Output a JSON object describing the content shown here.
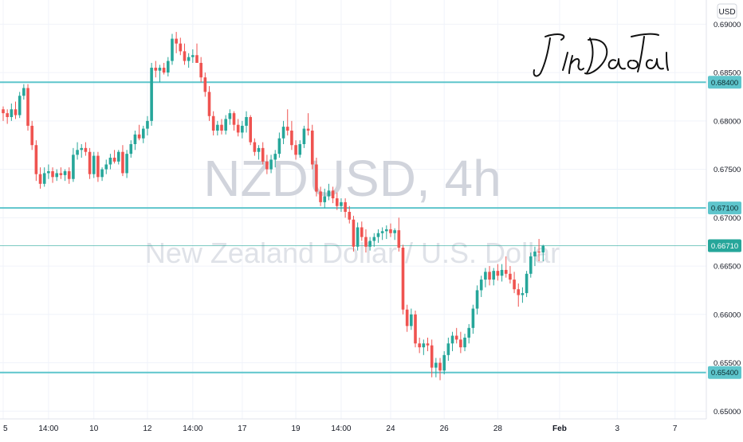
{
  "currency_badge": "USD",
  "signature": "JinDaoTai",
  "colors": {
    "up": "#26a69a",
    "down": "#ef5350",
    "level_line": "#5ec5cc",
    "price_line": "#26a69a",
    "grid": "#f0f3fa",
    "axis_text": "#131722",
    "watermark": "#d1d4dc"
  },
  "chart_data": {
    "type": "candlestick",
    "watermark": {
      "symbol": "NZDUSD, 4h",
      "description": "New Zealand Dollar / U.S. Dollar"
    },
    "y_axis": {
      "ticks": [
        {
          "value": 0.69,
          "label": "0.69000"
        },
        {
          "value": 0.685,
          "label": "0.68500"
        },
        {
          "value": 0.68,
          "label": "0.68000"
        },
        {
          "value": 0.675,
          "label": "0.67500"
        },
        {
          "value": 0.67,
          "label": "0.67000"
        },
        {
          "value": 0.665,
          "label": "0.66500"
        },
        {
          "value": 0.66,
          "label": "0.66000"
        },
        {
          "value": 0.655,
          "label": "0.65500"
        },
        {
          "value": 0.65,
          "label": "0.65000"
        }
      ],
      "range": [
        0.6492,
        0.6925
      ]
    },
    "x_axis": {
      "tick_labels": [
        "5",
        "14:00",
        "10",
        "12",
        "14:00",
        "17",
        "19",
        "14:00",
        "24",
        "26",
        "28",
        "Feb",
        "3",
        "7"
      ],
      "tick_index": [
        0,
        11,
        22,
        35,
        46,
        58,
        71,
        82,
        94,
        107,
        120,
        135,
        149,
        163
      ],
      "bold": [
        "Feb"
      ]
    },
    "horizontal_levels": [
      {
        "value": 0.684,
        "label": "0.68400"
      },
      {
        "value": 0.671,
        "label": "0.67100"
      },
      {
        "value": 0.654,
        "label": "0.65400"
      }
    ],
    "last_price": {
      "value": 0.6671,
      "label": "0.66710"
    },
    "candles": [
      [
        0.6812,
        0.6815,
        0.68,
        0.6808
      ],
      [
        0.6808,
        0.6812,
        0.6797,
        0.6804
      ],
      [
        0.6804,
        0.6818,
        0.68,
        0.6812
      ],
      [
        0.6812,
        0.682,
        0.6802,
        0.6806
      ],
      [
        0.6806,
        0.683,
        0.6803,
        0.6826
      ],
      [
        0.6826,
        0.6838,
        0.6822,
        0.6834
      ],
      [
        0.6834,
        0.6838,
        0.679,
        0.6795
      ],
      [
        0.6795,
        0.68,
        0.677,
        0.6775
      ],
      [
        0.6775,
        0.678,
        0.6738,
        0.6745
      ],
      [
        0.6745,
        0.6752,
        0.673,
        0.6735
      ],
      [
        0.6735,
        0.6752,
        0.6732,
        0.6746
      ],
      [
        0.6746,
        0.6755,
        0.674,
        0.6748
      ],
      [
        0.6748,
        0.6752,
        0.6736,
        0.6742
      ],
      [
        0.6742,
        0.675,
        0.6738,
        0.6746
      ],
      [
        0.6746,
        0.6752,
        0.674,
        0.6744
      ],
      [
        0.6744,
        0.675,
        0.6738,
        0.6748
      ],
      [
        0.6748,
        0.6752,
        0.6735,
        0.674
      ],
      [
        0.674,
        0.6772,
        0.6737,
        0.6765
      ],
      [
        0.6765,
        0.6778,
        0.676,
        0.677
      ],
      [
        0.677,
        0.6776,
        0.6762,
        0.6772
      ],
      [
        0.6772,
        0.6778,
        0.6764,
        0.6768
      ],
      [
        0.6768,
        0.6772,
        0.674,
        0.6745
      ],
      [
        0.6745,
        0.6768,
        0.6741,
        0.6764
      ],
      [
        0.6764,
        0.6768,
        0.6737,
        0.6742
      ],
      [
        0.6742,
        0.6752,
        0.6738,
        0.675
      ],
      [
        0.675,
        0.676,
        0.6745,
        0.6755
      ],
      [
        0.6755,
        0.6766,
        0.675,
        0.6762
      ],
      [
        0.6762,
        0.677,
        0.6756,
        0.6758
      ],
      [
        0.6758,
        0.677,
        0.6755,
        0.6768
      ],
      [
        0.6768,
        0.6775,
        0.6743,
        0.6746
      ],
      [
        0.6746,
        0.677,
        0.6741,
        0.6766
      ],
      [
        0.6766,
        0.678,
        0.6762,
        0.6776
      ],
      [
        0.6776,
        0.679,
        0.677,
        0.6786
      ],
      [
        0.6786,
        0.6796,
        0.678,
        0.6782
      ],
      [
        0.6782,
        0.6795,
        0.6777,
        0.6792
      ],
      [
        0.6792,
        0.6805,
        0.6785,
        0.68
      ],
      [
        0.68,
        0.686,
        0.6795,
        0.6855
      ],
      [
        0.6855,
        0.6862,
        0.6845,
        0.6852
      ],
      [
        0.6852,
        0.6858,
        0.684,
        0.6855
      ],
      [
        0.6855,
        0.686,
        0.6848,
        0.685
      ],
      [
        0.685,
        0.6866,
        0.6846,
        0.6862
      ],
      [
        0.6862,
        0.689,
        0.6858,
        0.6885
      ],
      [
        0.6885,
        0.6892,
        0.687,
        0.688
      ],
      [
        0.688,
        0.6886,
        0.6868,
        0.6872
      ],
      [
        0.6872,
        0.688,
        0.6858,
        0.6862
      ],
      [
        0.6862,
        0.687,
        0.6855,
        0.6866
      ],
      [
        0.6866,
        0.6874,
        0.686,
        0.6868
      ],
      [
        0.6868,
        0.688,
        0.6862,
        0.686
      ],
      [
        0.686,
        0.6866,
        0.684,
        0.6845
      ],
      [
        0.6845,
        0.685,
        0.6825,
        0.683
      ],
      [
        0.683,
        0.6836,
        0.68,
        0.6805
      ],
      [
        0.6805,
        0.681,
        0.6785,
        0.679
      ],
      [
        0.679,
        0.68,
        0.6785,
        0.6796
      ],
      [
        0.6796,
        0.6802,
        0.6786,
        0.679
      ],
      [
        0.679,
        0.6806,
        0.6786,
        0.6802
      ],
      [
        0.6802,
        0.6812,
        0.6796,
        0.6808
      ],
      [
        0.6808,
        0.681,
        0.679,
        0.6796
      ],
      [
        0.6796,
        0.6802,
        0.6784,
        0.6788
      ],
      [
        0.6788,
        0.68,
        0.6782,
        0.6795
      ],
      [
        0.6795,
        0.681,
        0.6788,
        0.6804
      ],
      [
        0.6804,
        0.6806,
        0.6775,
        0.6778
      ],
      [
        0.6778,
        0.6782,
        0.6764,
        0.6768
      ],
      [
        0.6768,
        0.6775,
        0.676,
        0.6772
      ],
      [
        0.6772,
        0.6778,
        0.6755,
        0.6758
      ],
      [
        0.6758,
        0.6765,
        0.6745,
        0.675
      ],
      [
        0.675,
        0.6765,
        0.6746,
        0.676
      ],
      [
        0.676,
        0.677,
        0.6752,
        0.6766
      ],
      [
        0.6766,
        0.6788,
        0.6762,
        0.6782
      ],
      [
        0.6782,
        0.68,
        0.6776,
        0.6794
      ],
      [
        0.6794,
        0.6812,
        0.6785,
        0.679
      ],
      [
        0.679,
        0.68,
        0.677,
        0.6775
      ],
      [
        0.6775,
        0.678,
        0.676,
        0.6765
      ],
      [
        0.6765,
        0.678,
        0.6762,
        0.6776
      ],
      [
        0.6776,
        0.6795,
        0.6772,
        0.6792
      ],
      [
        0.6792,
        0.6808,
        0.6785,
        0.679
      ],
      [
        0.679,
        0.6796,
        0.675,
        0.6755
      ],
      [
        0.6755,
        0.6762,
        0.6722,
        0.6727
      ],
      [
        0.6727,
        0.6732,
        0.6712,
        0.6716
      ],
      [
        0.6716,
        0.673,
        0.671,
        0.6722
      ],
      [
        0.6722,
        0.6735,
        0.6718,
        0.6728
      ],
      [
        0.6728,
        0.6732,
        0.6715,
        0.672
      ],
      [
        0.672,
        0.6726,
        0.6708,
        0.6712
      ],
      [
        0.6712,
        0.672,
        0.6706,
        0.6716
      ],
      [
        0.6716,
        0.672,
        0.67,
        0.6706
      ],
      [
        0.6706,
        0.6712,
        0.6694,
        0.6698
      ],
      [
        0.6698,
        0.6702,
        0.6665,
        0.667
      ],
      [
        0.667,
        0.6695,
        0.6666,
        0.669
      ],
      [
        0.669,
        0.6696,
        0.6676,
        0.668
      ],
      [
        0.668,
        0.6688,
        0.6664,
        0.667
      ],
      [
        0.667,
        0.668,
        0.6666,
        0.6676
      ],
      [
        0.6676,
        0.6684,
        0.667,
        0.668
      ],
      [
        0.668,
        0.6688,
        0.6674,
        0.6684
      ],
      [
        0.6684,
        0.669,
        0.6677,
        0.6686
      ],
      [
        0.6686,
        0.6692,
        0.6678,
        0.6688
      ],
      [
        0.6688,
        0.6694,
        0.668,
        0.6684
      ],
      [
        0.6684,
        0.6689,
        0.6677,
        0.6687
      ],
      [
        0.6687,
        0.67,
        0.6665,
        0.6669
      ],
      [
        0.6669,
        0.6672,
        0.66,
        0.6605
      ],
      [
        0.6605,
        0.661,
        0.6582,
        0.6588
      ],
      [
        0.6588,
        0.6606,
        0.6584,
        0.66
      ],
      [
        0.66,
        0.6604,
        0.6566,
        0.657
      ],
      [
        0.657,
        0.6576,
        0.656,
        0.6566
      ],
      [
        0.6566,
        0.6574,
        0.6558,
        0.657
      ],
      [
        0.657,
        0.6576,
        0.6562,
        0.6568
      ],
      [
        0.6568,
        0.6574,
        0.6535,
        0.6545
      ],
      [
        0.6545,
        0.6555,
        0.6535,
        0.655
      ],
      [
        0.655,
        0.6555,
        0.6532,
        0.6542
      ],
      [
        0.6542,
        0.6562,
        0.6538,
        0.6558
      ],
      [
        0.6558,
        0.6576,
        0.6552,
        0.657
      ],
      [
        0.657,
        0.6582,
        0.6562,
        0.6578
      ],
      [
        0.6578,
        0.6586,
        0.657,
        0.6574
      ],
      [
        0.6574,
        0.6582,
        0.656,
        0.6566
      ],
      [
        0.6566,
        0.658,
        0.6562,
        0.6576
      ],
      [
        0.6576,
        0.659,
        0.657,
        0.6586
      ],
      [
        0.6586,
        0.661,
        0.658,
        0.6606
      ],
      [
        0.6606,
        0.663,
        0.66,
        0.6625
      ],
      [
        0.6625,
        0.664,
        0.6618,
        0.6636
      ],
      [
        0.6636,
        0.6648,
        0.6628,
        0.6644
      ],
      [
        0.6644,
        0.665,
        0.663,
        0.6636
      ],
      [
        0.6636,
        0.6648,
        0.663,
        0.6645
      ],
      [
        0.6645,
        0.6652,
        0.6635,
        0.664
      ],
      [
        0.664,
        0.6652,
        0.6634,
        0.6646
      ],
      [
        0.6646,
        0.666,
        0.6638,
        0.6642
      ],
      [
        0.6642,
        0.665,
        0.6632,
        0.6636
      ],
      [
        0.6636,
        0.6644,
        0.6622,
        0.6626
      ],
      [
        0.6626,
        0.6632,
        0.6608,
        0.662
      ],
      [
        0.662,
        0.6628,
        0.6612,
        0.6622
      ],
      [
        0.6622,
        0.6645,
        0.6618,
        0.6642
      ],
      [
        0.6642,
        0.6664,
        0.6638,
        0.666
      ],
      [
        0.666,
        0.667,
        0.665,
        0.6665
      ],
      [
        0.6665,
        0.6678,
        0.6655,
        0.6664
      ],
      [
        0.6664,
        0.6672,
        0.6655,
        0.6671
      ]
    ]
  }
}
